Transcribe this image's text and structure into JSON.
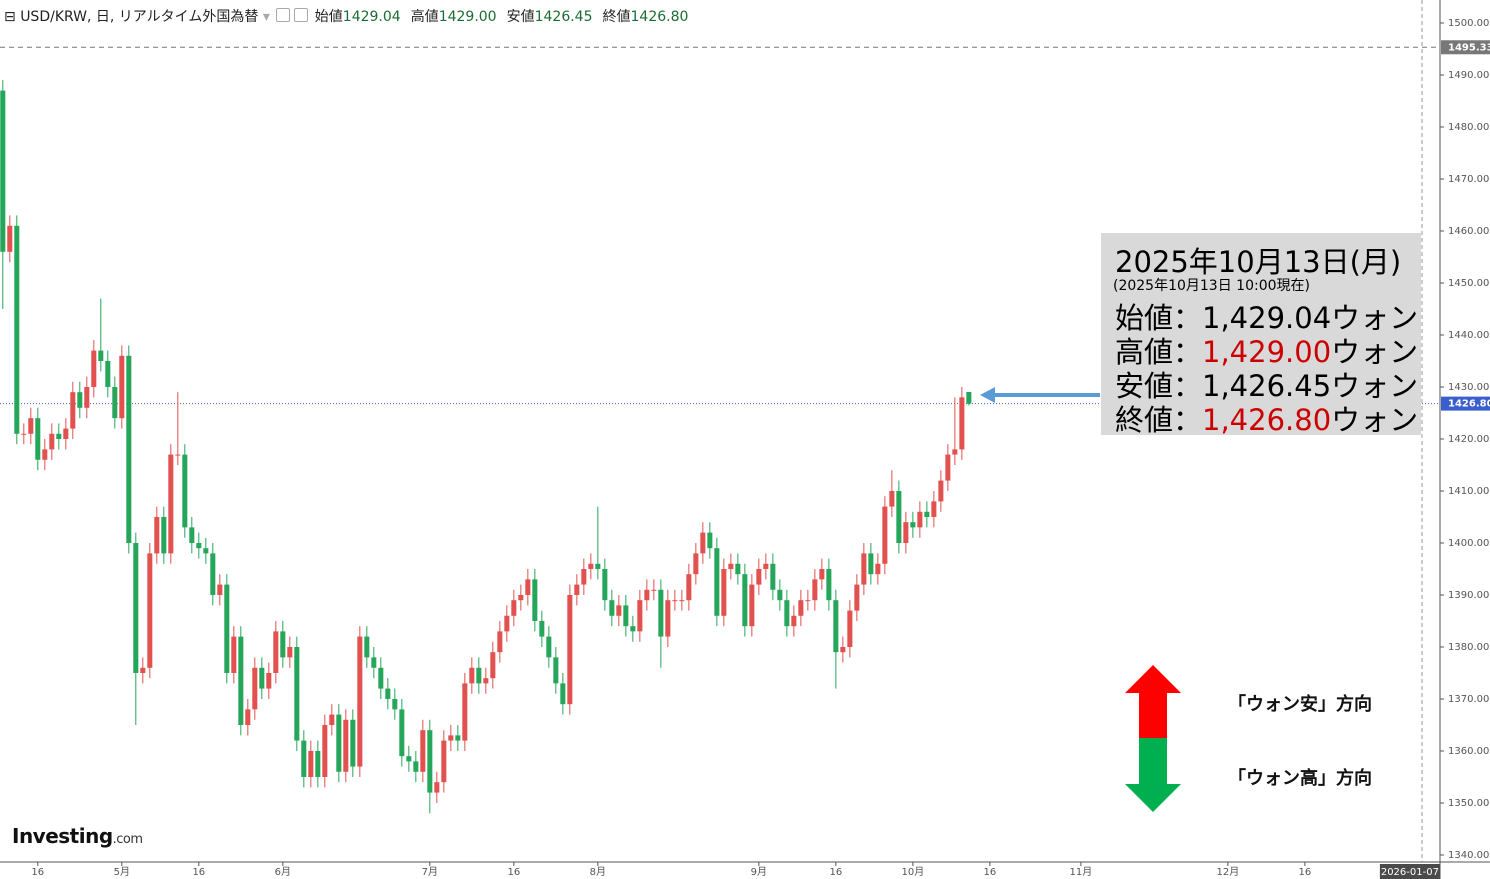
{
  "header": {
    "symbol": "USD/KRW, 日, リアルタイム外国為替",
    "ohlc": [
      {
        "name": "始値",
        "value": "1429.04"
      },
      {
        "name": "高値",
        "value": "1429.00"
      },
      {
        "name": "安値",
        "value": "1426.45"
      },
      {
        "name": "終値",
        "value": "1426.80"
      }
    ]
  },
  "chart_data": {
    "type": "candlestick",
    "up_color": "#e0514f",
    "down_color": "#26a65b",
    "open": [
      1487,
      1456,
      1461,
      1421,
      1421,
      1424,
      1416,
      1418,
      1421,
      1420,
      1422,
      1429,
      1426,
      1430,
      1437,
      1435,
      1430,
      1424,
      1436,
      1400,
      1375,
      1376,
      1398,
      1405,
      1398,
      1417,
      1417,
      1403,
      1400,
      1399,
      1398,
      1390,
      1392,
      1375,
      1382,
      1365,
      1368,
      1376,
      1372,
      1375,
      1383,
      1378,
      1380,
      1362,
      1355,
      1360,
      1355,
      1365,
      1367,
      1356,
      1366,
      1357,
      1382,
      1378,
      1376,
      1372,
      1370,
      1368,
      1359,
      1358,
      1356,
      1364,
      1352,
      1354,
      1362,
      1363,
      1362,
      1373,
      1376,
      1373,
      1374,
      1379,
      1383,
      1386,
      1389,
      1390,
      1393,
      1385,
      1382,
      1378,
      1373,
      1369,
      1390,
      1392,
      1395,
      1396,
      1395,
      1389,
      1386,
      1388,
      1384,
      1383,
      1389,
      1391,
      1391,
      1382,
      1389,
      1389,
      1389,
      1394,
      1398,
      1402,
      1399,
      1386,
      1395,
      1396,
      1394,
      1384,
      1392,
      1395,
      1396,
      1391,
      1389,
      1384,
      1386,
      1389,
      1389,
      1393,
      1395,
      1389,
      1379,
      1380,
      1387,
      1392,
      1398,
      1394,
      1396,
      1407,
      1410,
      1400,
      1404,
      1403,
      1406,
      1405,
      1408,
      1412,
      1417,
      1418,
      1429.04
    ],
    "high": [
      1489,
      1463,
      1463,
      1423,
      1426,
      1426,
      1420,
      1423,
      1423,
      1424,
      1431,
      1431,
      1432,
      1439,
      1447,
      1437,
      1432,
      1438,
      1438,
      1402,
      1378,
      1400,
      1407,
      1407,
      1419,
      1429,
      1419,
      1405,
      1402,
      1401,
      1400,
      1394,
      1394,
      1384,
      1384,
      1370,
      1378,
      1378,
      1377,
      1385,
      1385,
      1382,
      1382,
      1364,
      1362,
      1362,
      1367,
      1369,
      1369,
      1368,
      1368,
      1384,
      1384,
      1380,
      1378,
      1374,
      1372,
      1370,
      1361,
      1360,
      1366,
      1366,
      1356,
      1364,
      1365,
      1365,
      1375,
      1378,
      1378,
      1376,
      1381,
      1385,
      1388,
      1391,
      1392,
      1395,
      1395,
      1387,
      1384,
      1380,
      1375,
      1392,
      1394,
      1397,
      1398,
      1407,
      1397,
      1391,
      1390,
      1390,
      1386,
      1391,
      1393,
      1393,
      1393,
      1391,
      1391,
      1391,
      1396,
      1400,
      1404,
      1404,
      1401,
      1397,
      1398,
      1398,
      1396,
      1394,
      1397,
      1398,
      1398,
      1393,
      1391,
      1388,
      1391,
      1391,
      1395,
      1397,
      1397,
      1391,
      1382,
      1389,
      1394,
      1400,
      1400,
      1398,
      1409,
      1414,
      1412,
      1406,
      1406,
      1408,
      1408,
      1410,
      1414,
      1419,
      1428,
      1430,
      1429.0
    ],
    "low": [
      1445,
      1454,
      1419,
      1419,
      1419,
      1414,
      1414,
      1416,
      1418,
      1418,
      1420,
      1424,
      1424,
      1428,
      1433,
      1428,
      1422,
      1422,
      1398,
      1365,
      1373,
      1374,
      1396,
      1396,
      1396,
      1415,
      1401,
      1398,
      1397,
      1396,
      1388,
      1388,
      1373,
      1373,
      1363,
      1363,
      1366,
      1370,
      1370,
      1373,
      1376,
      1376,
      1360,
      1353,
      1353,
      1353,
      1353,
      1363,
      1354,
      1354,
      1355,
      1355,
      1376,
      1374,
      1370,
      1368,
      1366,
      1357,
      1356,
      1354,
      1354,
      1348,
      1350,
      1352,
      1360,
      1360,
      1360,
      1371,
      1371,
      1371,
      1372,
      1377,
      1381,
      1384,
      1387,
      1388,
      1383,
      1380,
      1376,
      1371,
      1367,
      1367,
      1388,
      1390,
      1393,
      1393,
      1387,
      1384,
      1384,
      1382,
      1381,
      1381,
      1387,
      1389,
      1376,
      1380,
      1387,
      1387,
      1387,
      1392,
      1396,
      1397,
      1384,
      1384,
      1393,
      1392,
      1382,
      1382,
      1390,
      1393,
      1389,
      1387,
      1382,
      1382,
      1384,
      1387,
      1387,
      1391,
      1387,
      1372,
      1377,
      1378,
      1385,
      1390,
      1392,
      1392,
      1394,
      1405,
      1398,
      1398,
      1401,
      1401,
      1403,
      1403,
      1406,
      1410,
      1415,
      1416,
      1426.45
    ],
    "close": [
      1456,
      1461,
      1421,
      1421,
      1424,
      1416,
      1418,
      1421,
      1420,
      1422,
      1429,
      1426,
      1430,
      1437,
      1435,
      1430,
      1424,
      1436,
      1400,
      1375,
      1376,
      1398,
      1405,
      1398,
      1417,
      1417,
      1403,
      1400,
      1399,
      1398,
      1390,
      1392,
      1375,
      1382,
      1365,
      1368,
      1376,
      1372,
      1375,
      1383,
      1378,
      1380,
      1362,
      1355,
      1360,
      1355,
      1365,
      1367,
      1356,
      1366,
      1357,
      1382,
      1378,
      1376,
      1372,
      1370,
      1368,
      1359,
      1358,
      1356,
      1364,
      1352,
      1354,
      1362,
      1363,
      1362,
      1373,
      1376,
      1373,
      1374,
      1379,
      1383,
      1386,
      1389,
      1390,
      1393,
      1385,
      1382,
      1378,
      1373,
      1369,
      1390,
      1392,
      1395,
      1396,
      1395,
      1389,
      1386,
      1388,
      1384,
      1383,
      1389,
      1391,
      1391,
      1382,
      1389,
      1389,
      1389,
      1394,
      1398,
      1402,
      1399,
      1386,
      1395,
      1396,
      1394,
      1384,
      1392,
      1395,
      1396,
      1391,
      1389,
      1384,
      1386,
      1389,
      1389,
      1393,
      1395,
      1389,
      1379,
      1380,
      1387,
      1392,
      1398,
      1394,
      1396,
      1407,
      1410,
      1400,
      1404,
      1403,
      1406,
      1405,
      1408,
      1412,
      1417,
      1418,
      1428,
      1426.8
    ],
    "xlim": [
      -0.4,
      205.3
    ],
    "xticks": [
      {
        "value": 5,
        "label": "16"
      },
      {
        "value": 17,
        "label": "5月"
      },
      {
        "value": 28,
        "label": "16"
      },
      {
        "value": 40,
        "label": "6月"
      },
      {
        "value": 61,
        "label": "7月"
      },
      {
        "value": 73,
        "label": "16"
      },
      {
        "value": 85,
        "label": "8月"
      },
      {
        "value": 108,
        "label": "9月"
      },
      {
        "value": 119,
        "label": "16"
      },
      {
        "value": 130,
        "label": "10月"
      },
      {
        "value": 141,
        "label": "16"
      },
      {
        "value": 154,
        "label": "11月"
      },
      {
        "value": 175,
        "label": "12月"
      },
      {
        "value": 186,
        "label": "16"
      }
    ],
    "cursor_date": {
      "value": 201,
      "label": "2026-01-07"
    },
    "ylim": [
      1338.65,
      1504.42
    ],
    "yticks": [
      {
        "value": 1340,
        "label": "1340.00"
      },
      {
        "value": 1350,
        "label": "1350.00"
      },
      {
        "value": 1360,
        "label": "1360.00"
      },
      {
        "value": 1370,
        "label": "1370.00"
      },
      {
        "value": 1380,
        "label": "1380.00"
      },
      {
        "value": 1390,
        "label": "1390.00"
      },
      {
        "value": 1400,
        "label": "1400.00"
      },
      {
        "value": 1410,
        "label": "1410.00"
      },
      {
        "value": 1420,
        "label": "1420.00"
      },
      {
        "value": 1430,
        "label": "1430.00"
      },
      {
        "value": 1440,
        "label": "1440.00"
      },
      {
        "value": 1450,
        "label": "1450.00"
      },
      {
        "value": 1460,
        "label": "1460.00"
      },
      {
        "value": 1470,
        "label": "1470.00"
      },
      {
        "value": 1480,
        "label": "1480.00"
      },
      {
        "value": 1490,
        "label": "1490.00"
      },
      {
        "value": 1500,
        "label": "1500.00"
      }
    ],
    "reference_line": {
      "value": 1495.33,
      "color": "#777777"
    },
    "last_price": {
      "value": 1426.8,
      "label": "1426.80",
      "color": "#3a5fcd"
    }
  },
  "annotation": {
    "title": "2025年10月13日(月)",
    "subtitle": "(2025年10月13日 10:00現在)",
    "lines": [
      {
        "label": "始値：",
        "value": "1,429.04",
        "unit": "ウォン",
        "color": "#000000"
      },
      {
        "label": "高値：",
        "value": "1,429.00",
        "unit": "ウォン",
        "color": "#cc0000"
      },
      {
        "label": "安値：",
        "value": "1,426.45",
        "unit": "ウォン",
        "color": "#000000"
      },
      {
        "label": "終値：",
        "value": "1,426.80",
        "unit": "ウォン",
        "color": "#cc0000"
      }
    ]
  },
  "direction": {
    "up": "「ウォン安」方向",
    "down": "「ウォン高」方向"
  },
  "logo": {
    "name": "Investing",
    "suffix": ".com"
  }
}
